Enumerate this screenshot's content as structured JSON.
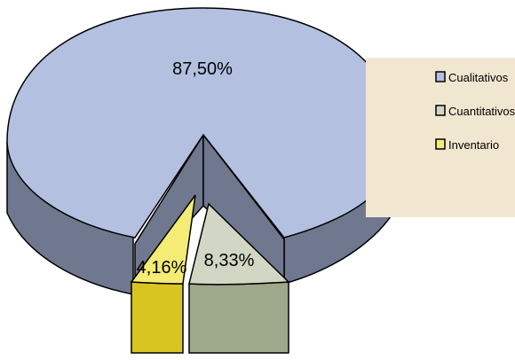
{
  "chart_data": {
    "type": "pie",
    "style": "3d-exploded",
    "title": "",
    "categories": [
      "Cualitativos",
      "Cuantitativos",
      "Inventario"
    ],
    "values": [
      87.5,
      8.33,
      4.16
    ],
    "labels": [
      "87,50%",
      "8,33%",
      "4,16%"
    ],
    "colors": {
      "Cualitativos": "#b4c0e0",
      "Cuantitativos": "#d2d6c4",
      "Inventario": "#f4ec74"
    },
    "legend": {
      "placement": "right",
      "background": "#f1e7d1",
      "items": [
        "Cualitativos",
        "Cuantitativos",
        "Inventario"
      ]
    }
  }
}
